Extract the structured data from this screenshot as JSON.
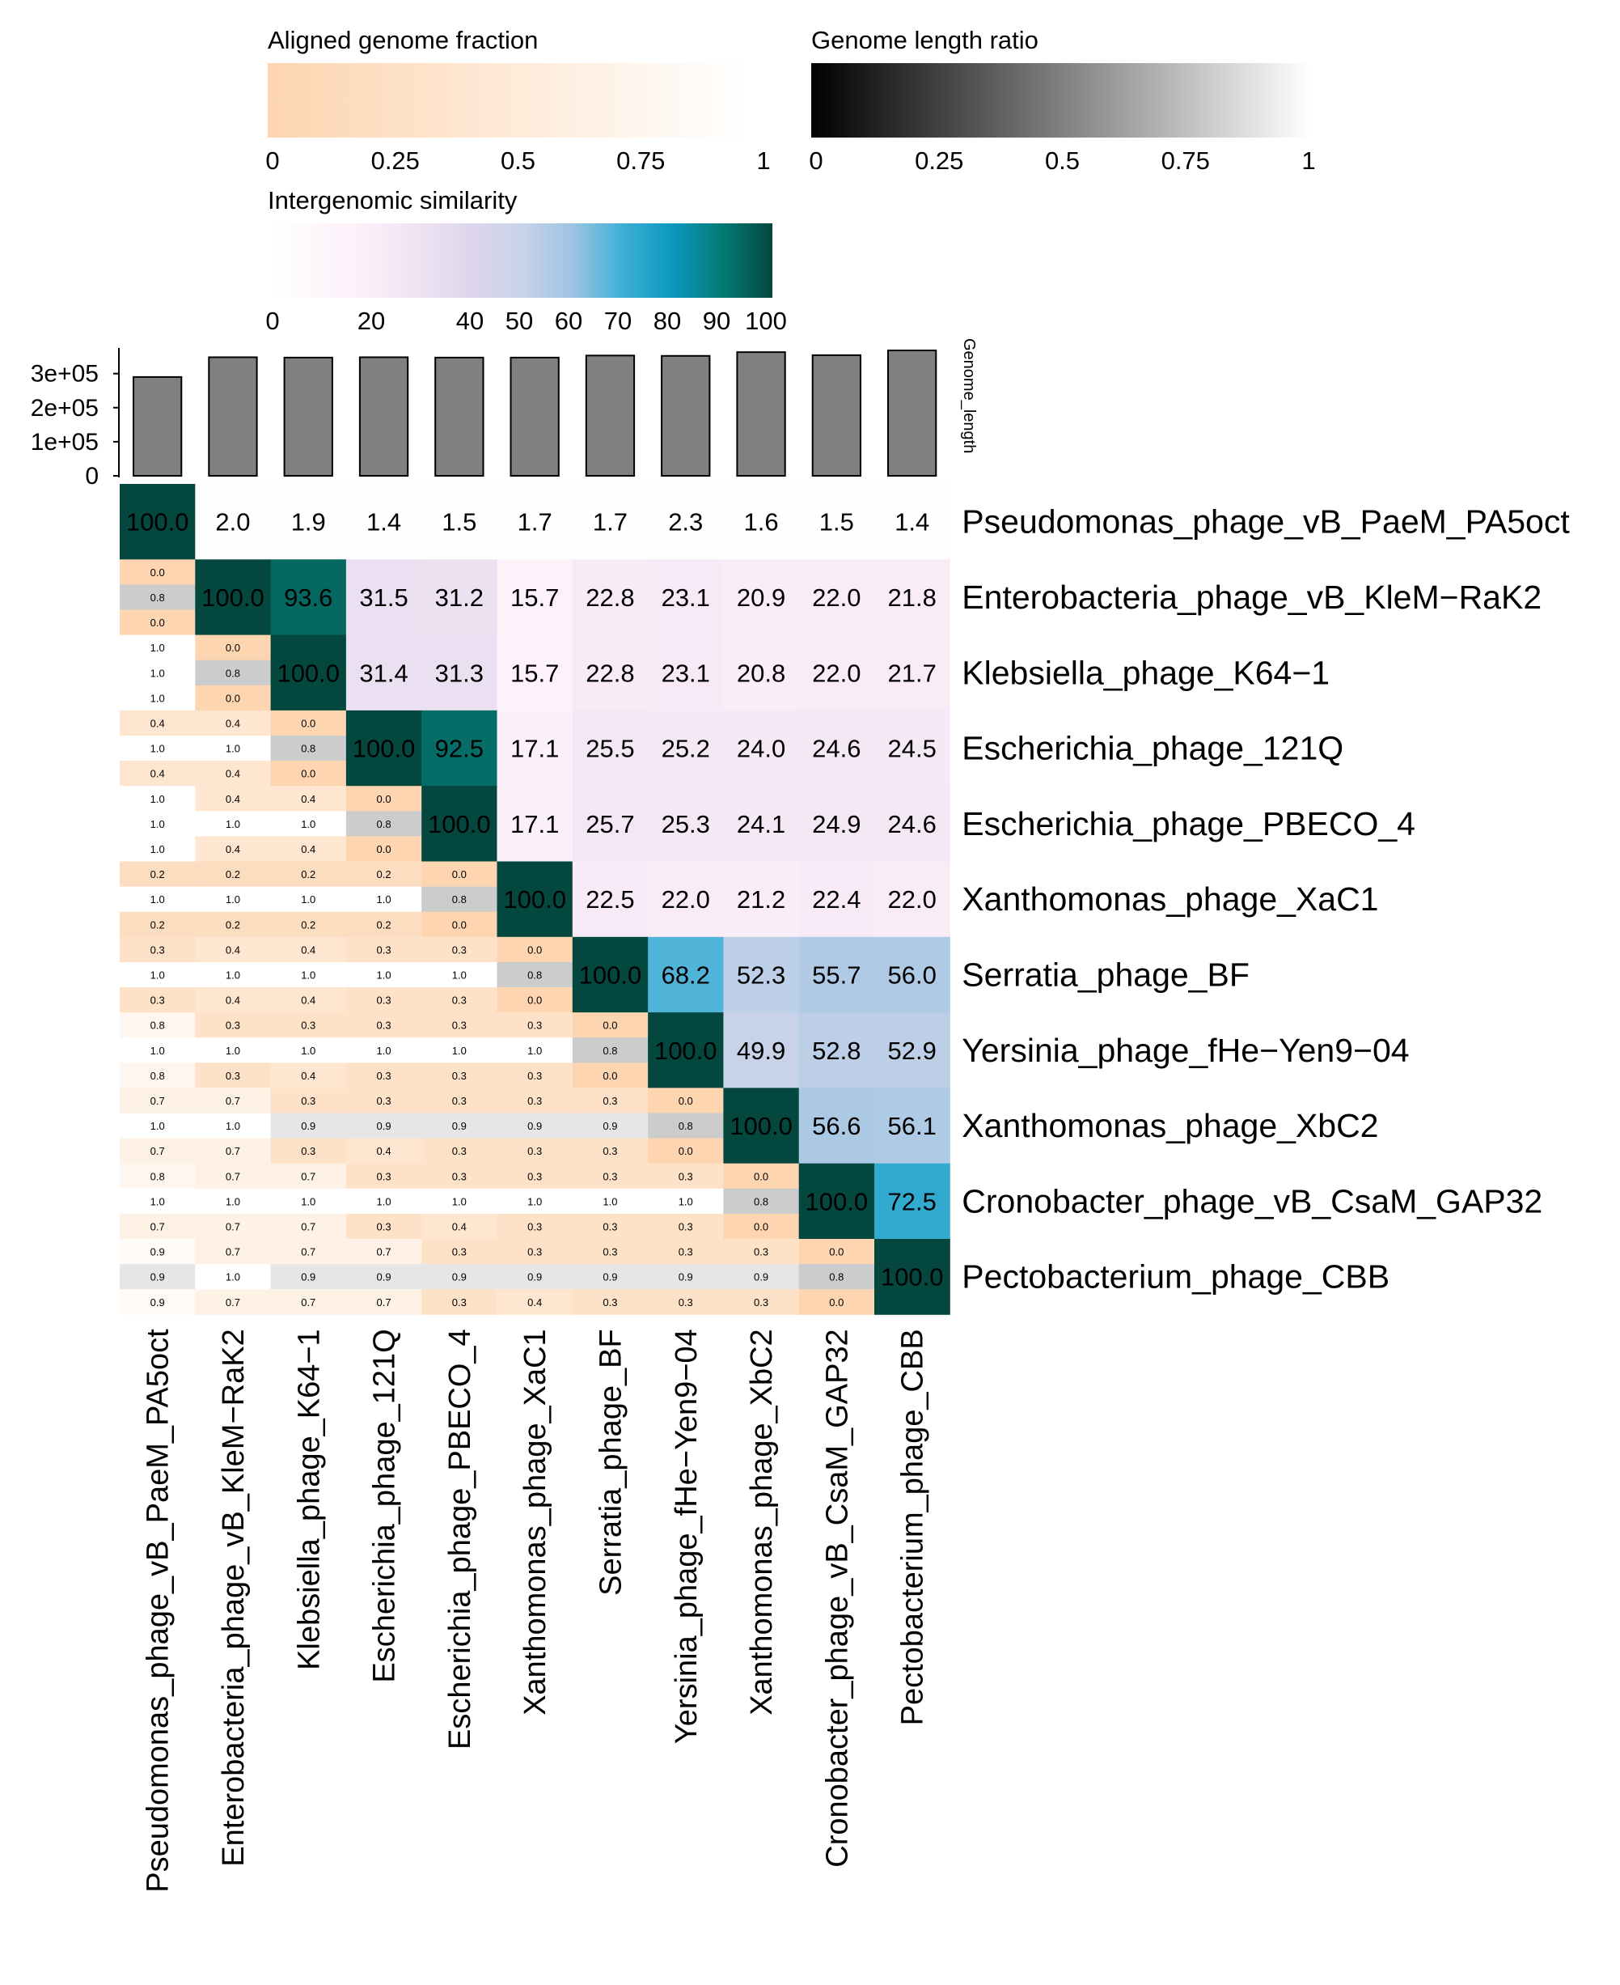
{
  "chart_data": {
    "type": "heatmap",
    "title": "",
    "legends": {
      "aligned_fraction": {
        "title": "Aligned genome fraction",
        "ticks": [
          "0",
          "0.25",
          "0.5",
          "0.75",
          "1"
        ],
        "range": [
          0,
          1
        ],
        "colors": [
          "#fdd5b0",
          "#ffffff"
        ]
      },
      "length_ratio": {
        "title": "Genome length ratio",
        "ticks": [
          "0",
          "0.25",
          "0.5",
          "0.75",
          "1"
        ],
        "range": [
          0,
          1
        ],
        "colors": [
          "#000000",
          "#ffffff"
        ]
      },
      "similarity": {
        "title": "Intergenomic similarity",
        "ticks": [
          "0",
          "20",
          "40",
          "50",
          "60",
          "70",
          "80",
          "90",
          "100"
        ],
        "tick_values": [
          0,
          20,
          40,
          50,
          60,
          70,
          80,
          90,
          100
        ],
        "range": [
          0,
          100
        ],
        "stops": [
          {
            "v": 0,
            "c": "#ffffff"
          },
          {
            "v": 20,
            "c": "#fceef8"
          },
          {
            "v": 40,
            "c": "#ddd6ec"
          },
          {
            "v": 50,
            "c": "#c8d3e9"
          },
          {
            "v": 60,
            "c": "#9ec4e2"
          },
          {
            "v": 70,
            "c": "#3fb0d6"
          },
          {
            "v": 80,
            "c": "#0a98bf"
          },
          {
            "v": 90,
            "c": "#047a75"
          },
          {
            "v": 100,
            "c": "#03473e"
          }
        ]
      }
    },
    "genome_length": {
      "axis_title": "Genome_length",
      "ticks": [
        "0",
        "1e+05",
        "2e+05",
        "3e+05"
      ],
      "tick_values": [
        0,
        100000,
        200000,
        300000
      ],
      "max": 380000,
      "values": [
        290000,
        348000,
        347000,
        348000,
        347000,
        347000,
        353000,
        352000,
        363000,
        354000,
        368000
      ]
    },
    "genomes": [
      "Pseudomonas_phage_vB_PaeM_PA5oct",
      "Enterobacteria_phage_vB_KleM−RaK2",
      "Klebsiella_phage_K64−1",
      "Escherichia_phage_121Q",
      "Escherichia_phage_PBECO_4",
      "Xanthomonas_phage_XaC1",
      "Serratia_phage_BF",
      "Yersinia_phage_fHe−Yen9−04",
      "Xanthomonas_phage_XbC2",
      "Cronobacter_phage_vB_CsaM_GAP32",
      "Pectobacterium_phage_CBB"
    ],
    "similarity": [
      [
        "100.0",
        "2.0",
        "1.9",
        "1.4",
        "1.5",
        "1.7",
        "1.7",
        "2.3",
        "1.6",
        "1.5",
        "1.4"
      ],
      [
        null,
        "100.0",
        "93.6",
        "31.5",
        "31.2",
        "15.7",
        "22.8",
        "23.1",
        "20.9",
        "22.0",
        "21.8"
      ],
      [
        null,
        null,
        "100.0",
        "31.4",
        "31.3",
        "15.7",
        "22.8",
        "23.1",
        "20.8",
        "22.0",
        "21.7"
      ],
      [
        null,
        null,
        null,
        "100.0",
        "92.5",
        "17.1",
        "25.5",
        "25.2",
        "24.0",
        "24.6",
        "24.5"
      ],
      [
        null,
        null,
        null,
        null,
        "100.0",
        "17.1",
        "25.7",
        "25.3",
        "24.1",
        "24.9",
        "24.6"
      ],
      [
        null,
        null,
        null,
        null,
        null,
        "100.0",
        "22.5",
        "22.0",
        "21.2",
        "22.4",
        "22.0"
      ],
      [
        null,
        null,
        null,
        null,
        null,
        null,
        "100.0",
        "68.2",
        "52.3",
        "55.7",
        "56.0"
      ],
      [
        null,
        null,
        null,
        null,
        null,
        null,
        null,
        "100.0",
        "49.9",
        "52.8",
        "52.9"
      ],
      [
        null,
        null,
        null,
        null,
        null,
        null,
        null,
        null,
        "100.0",
        "56.6",
        "56.1"
      ],
      [
        null,
        null,
        null,
        null,
        null,
        null,
        null,
        null,
        null,
        "100.0",
        "72.5"
      ],
      [
        null,
        null,
        null,
        null,
        null,
        null,
        null,
        null,
        null,
        null,
        "100.0"
      ]
    ],
    "lower_triangle": [
      [],
      [
        [
          "0.0",
          "0.8",
          "0.0"
        ]
      ],
      [
        [
          "1.0",
          "1.0",
          "1.0"
        ],
        [
          "0.0",
          "0.8",
          "0.0"
        ]
      ],
      [
        [
          "0.4",
          "1.0",
          "0.4"
        ],
        [
          "0.4",
          "1.0",
          "0.4"
        ],
        [
          "0.0",
          "0.8",
          "0.0"
        ]
      ],
      [
        [
          "1.0",
          "1.0",
          "1.0"
        ],
        [
          "0.4",
          "1.0",
          "0.4"
        ],
        [
          "0.4",
          "1.0",
          "0.4"
        ],
        [
          "0.0",
          "0.8",
          "0.0"
        ]
      ],
      [
        [
          "0.2",
          "1.0",
          "0.2"
        ],
        [
          "0.2",
          "1.0",
          "0.2"
        ],
        [
          "0.2",
          "1.0",
          "0.2"
        ],
        [
          "0.2",
          "1.0",
          "0.2"
        ],
        [
          "0.0",
          "0.8",
          "0.0"
        ]
      ],
      [
        [
          "0.3",
          "1.0",
          "0.3"
        ],
        [
          "0.4",
          "1.0",
          "0.4"
        ],
        [
          "0.4",
          "1.0",
          "0.4"
        ],
        [
          "0.3",
          "1.0",
          "0.3"
        ],
        [
          "0.3",
          "1.0",
          "0.3"
        ],
        [
          "0.0",
          "0.8",
          "0.0"
        ]
      ],
      [
        [
          "0.8",
          "1.0",
          "0.8"
        ],
        [
          "0.3",
          "1.0",
          "0.3"
        ],
        [
          "0.3",
          "1.0",
          "0.4"
        ],
        [
          "0.3",
          "1.0",
          "0.3"
        ],
        [
          "0.3",
          "1.0",
          "0.3"
        ],
        [
          "0.3",
          "1.0",
          "0.3"
        ],
        [
          "0.0",
          "0.8",
          "0.0"
        ]
      ],
      [
        [
          "0.7",
          "1.0",
          "0.7"
        ],
        [
          "0.7",
          "1.0",
          "0.7"
        ],
        [
          "0.3",
          "0.9",
          "0.3"
        ],
        [
          "0.3",
          "0.9",
          "0.4"
        ],
        [
          "0.3",
          "0.9",
          "0.3"
        ],
        [
          "0.3",
          "0.9",
          "0.3"
        ],
        [
          "0.3",
          "0.9",
          "0.3"
        ],
        [
          "0.0",
          "0.8",
          "0.0"
        ]
      ],
      [
        [
          "0.8",
          "1.0",
          "0.7"
        ],
        [
          "0.7",
          "1.0",
          "0.7"
        ],
        [
          "0.7",
          "1.0",
          "0.7"
        ],
        [
          "0.3",
          "1.0",
          "0.3"
        ],
        [
          "0.3",
          "1.0",
          "0.4"
        ],
        [
          "0.3",
          "1.0",
          "0.3"
        ],
        [
          "0.3",
          "1.0",
          "0.3"
        ],
        [
          "0.3",
          "1.0",
          "0.3"
        ],
        [
          "0.0",
          "0.8",
          "0.0"
        ]
      ],
      [
        [
          "0.9",
          "0.9",
          "0.9"
        ],
        [
          "0.7",
          "1.0",
          "0.7"
        ],
        [
          "0.7",
          "0.9",
          "0.7"
        ],
        [
          "0.7",
          "0.9",
          "0.7"
        ],
        [
          "0.3",
          "0.9",
          "0.3"
        ],
        [
          "0.3",
          "0.9",
          "0.4"
        ],
        [
          "0.3",
          "0.9",
          "0.3"
        ],
        [
          "0.3",
          "0.9",
          "0.3"
        ],
        [
          "0.3",
          "0.9",
          "0.3"
        ],
        [
          "0.0",
          "0.8",
          "0.0"
        ]
      ]
    ]
  }
}
